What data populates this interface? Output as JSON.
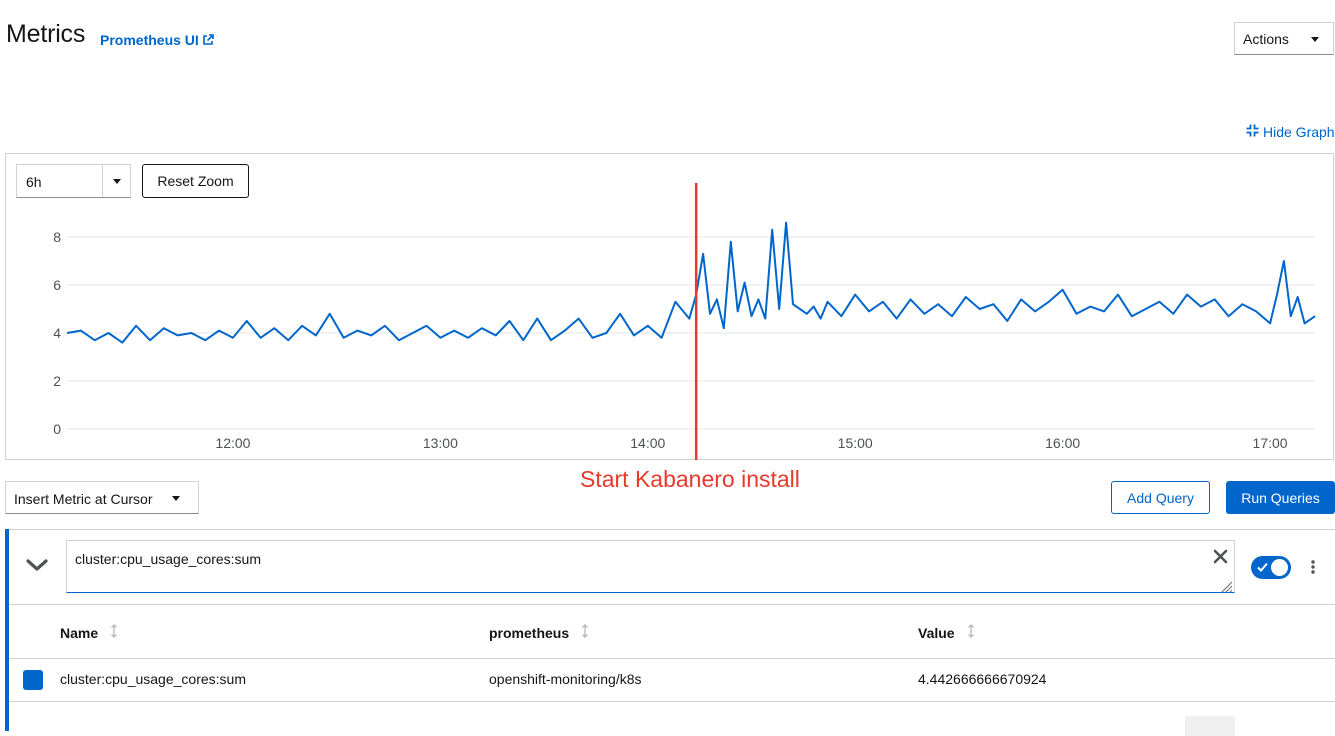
{
  "header": {
    "title": "Metrics",
    "prometheus_link": "Prometheus UI",
    "actions_label": "Actions"
  },
  "graph": {
    "hide_label": "Hide Graph",
    "time_range": "6h",
    "reset_zoom_label": "Reset Zoom",
    "annotation_text": "Start Kabanero install"
  },
  "chart_data": {
    "type": "line",
    "title": "",
    "xlabel": "",
    "ylabel": "",
    "x_ticks": [
      "12:00",
      "13:00",
      "14:00",
      "15:00",
      "16:00",
      "17:00"
    ],
    "y_ticks": [
      "0",
      "2",
      "4",
      "6",
      "8"
    ],
    "xlim": [
      "11:12",
      "17:13"
    ],
    "ylim": [
      0,
      8.5
    ],
    "grid": true,
    "annotation": {
      "x": "14:14",
      "label": "Start Kabanero install",
      "color": "#e8392c"
    },
    "series": [
      {
        "name": "cluster:cpu_usage_cores:sum",
        "color": "#0066cc",
        "x": [
          "11:12",
          "11:16",
          "11:20",
          "11:24",
          "11:28",
          "11:32",
          "11:36",
          "11:40",
          "11:44",
          "11:48",
          "11:52",
          "11:56",
          "12:00",
          "12:04",
          "12:08",
          "12:12",
          "12:16",
          "12:20",
          "12:24",
          "12:28",
          "12:32",
          "12:36",
          "12:40",
          "12:44",
          "12:48",
          "12:52",
          "12:56",
          "13:00",
          "13:04",
          "13:08",
          "13:12",
          "13:16",
          "13:20",
          "13:24",
          "13:28",
          "13:32",
          "13:36",
          "13:40",
          "13:44",
          "13:48",
          "13:52",
          "13:56",
          "14:00",
          "14:04",
          "14:08",
          "14:12",
          "14:14",
          "14:16",
          "14:18",
          "14:20",
          "14:22",
          "14:24",
          "14:26",
          "14:28",
          "14:30",
          "14:32",
          "14:34",
          "14:36",
          "14:38",
          "14:40",
          "14:42",
          "14:44",
          "14:46",
          "14:48",
          "14:50",
          "14:52",
          "14:56",
          "15:00",
          "15:04",
          "15:08",
          "15:12",
          "15:16",
          "15:20",
          "15:24",
          "15:28",
          "15:32",
          "15:36",
          "15:40",
          "15:44",
          "15:48",
          "15:52",
          "15:56",
          "16:00",
          "16:04",
          "16:08",
          "16:12",
          "16:16",
          "16:20",
          "16:24",
          "16:28",
          "16:32",
          "16:36",
          "16:40",
          "16:44",
          "16:48",
          "16:52",
          "16:56",
          "17:00",
          "17:02",
          "17:04",
          "17:06",
          "17:08",
          "17:10",
          "17:13"
        ],
        "values": [
          4.0,
          4.1,
          3.7,
          4.0,
          3.6,
          4.3,
          3.7,
          4.2,
          3.9,
          4.0,
          3.7,
          4.1,
          3.8,
          4.5,
          3.8,
          4.2,
          3.7,
          4.3,
          3.9,
          4.8,
          3.8,
          4.1,
          3.9,
          4.3,
          3.7,
          4.0,
          4.3,
          3.8,
          4.1,
          3.8,
          4.2,
          3.9,
          4.5,
          3.7,
          4.6,
          3.7,
          4.1,
          4.6,
          3.8,
          4.0,
          4.8,
          3.9,
          4.3,
          3.8,
          5.3,
          4.6,
          5.6,
          7.3,
          4.8,
          5.4,
          4.2,
          7.8,
          4.9,
          6.1,
          4.7,
          5.4,
          4.6,
          8.3,
          5.0,
          8.6,
          5.2,
          5.0,
          4.8,
          5.1,
          4.6,
          5.3,
          4.7,
          5.6,
          4.9,
          5.3,
          4.6,
          5.4,
          4.8,
          5.2,
          4.7,
          5.5,
          5.0,
          5.2,
          4.5,
          5.4,
          4.9,
          5.3,
          5.8,
          4.8,
          5.1,
          4.9,
          5.6,
          4.7,
          5.0,
          5.3,
          4.8,
          5.6,
          5.1,
          5.4,
          4.7,
          5.2,
          4.9,
          4.4,
          5.6,
          7.0,
          4.7,
          5.5,
          4.4,
          4.7
        ]
      }
    ]
  },
  "insert_metric_label": "Insert Metric at Cursor",
  "add_query_label": "Add Query",
  "run_queries_label": "Run Queries",
  "query": {
    "expression": "cluster:cpu_usage_cores:sum",
    "enabled": true
  },
  "table": {
    "columns": [
      "Name",
      "prometheus",
      "Value"
    ],
    "rows": [
      {
        "name": "cluster:cpu_usage_cores:sum",
        "prometheus": "openshift-monitoring/k8s",
        "value": "4.442666666670924",
        "color": "#0066cc"
      }
    ]
  }
}
